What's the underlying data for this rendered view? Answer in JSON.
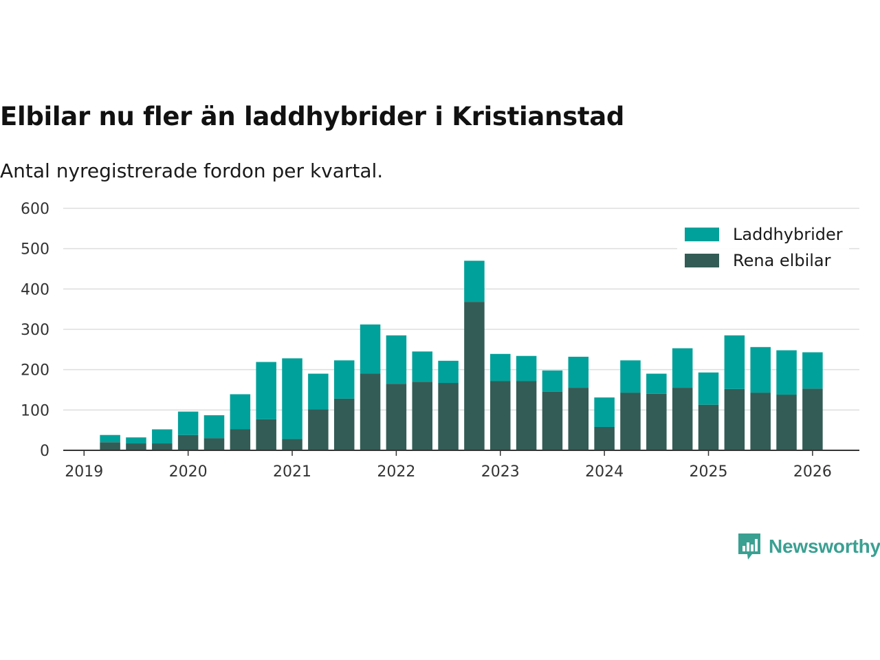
{
  "title": "Elbilar nu fler än laddhybrider i Kristianstad",
  "subtitle": "Antal nyregistrerade fordon per kvartal.",
  "brand": {
    "name": "Newsworthy",
    "icon": "newsworthy-logo-icon"
  },
  "colors": {
    "plug_in_hybrid": "#00a19a",
    "electric": "#335c56",
    "grid": "#dddddd",
    "axis": "#333333",
    "brand": "#3aa092"
  },
  "chart_data": {
    "type": "bar",
    "stacked": true,
    "title": "Elbilar nu fler än laddhybrider i Kristianstad",
    "xlabel": "",
    "ylabel": "",
    "ylim": [
      0,
      600
    ],
    "yticks": [
      0,
      100,
      200,
      300,
      400,
      500,
      600
    ],
    "xticks": [
      {
        "label": "2019",
        "x": 2019.0
      },
      {
        "label": "2020",
        "x": 2020.0
      },
      {
        "label": "2021",
        "x": 2021.0
      },
      {
        "label": "2022",
        "x": 2022.0
      },
      {
        "label": "2023",
        "x": 2023.0
      },
      {
        "label": "2024",
        "x": 2024.0
      },
      {
        "label": "2025",
        "x": 2025.0
      },
      {
        "label": "2026",
        "x": 2026.0
      }
    ],
    "xlim": [
      2018.8,
      2026.45
    ],
    "categories": [
      "2019 Q2",
      "2019 Q3",
      "2019 Q4",
      "2020 Q1",
      "2020 Q2",
      "2020 Q3",
      "2020 Q4",
      "2021 Q1",
      "2021 Q2",
      "2021 Q3",
      "2021 Q4",
      "2022 Q1",
      "2022 Q2",
      "2022 Q3",
      "2022 Q4",
      "2023 Q1",
      "2023 Q2",
      "2023 Q3",
      "2023 Q4",
      "2024 Q1",
      "2024 Q2",
      "2024 Q3",
      "2024 Q4",
      "2025 Q1",
      "2025 Q2",
      "2025 Q3",
      "2025 Q4",
      "2026 Q1"
    ],
    "x": [
      2019.25,
      2019.5,
      2019.75,
      2020.0,
      2020.25,
      2020.5,
      2020.75,
      2021.0,
      2021.25,
      2021.5,
      2021.75,
      2022.0,
      2022.25,
      2022.5,
      2022.75,
      2023.0,
      2023.25,
      2023.5,
      2023.75,
      2024.0,
      2024.25,
      2024.5,
      2024.75,
      2025.0,
      2025.25,
      2025.5,
      2025.75,
      2026.0
    ],
    "series": [
      {
        "name": "Rena elbilar",
        "color": "#335c56",
        "values": [
          20,
          17,
          17,
          38,
          30,
          52,
          77,
          28,
          102,
          128,
          190,
          165,
          170,
          167,
          368,
          172,
          172,
          145,
          155,
          58,
          143,
          140,
          155,
          113,
          152,
          143,
          138,
          153
        ]
      },
      {
        "name": "Laddhybrider",
        "color": "#00a19a",
        "values": [
          18,
          15,
          35,
          58,
          57,
          87,
          142,
          200,
          88,
          95,
          122,
          120,
          75,
          55,
          102,
          67,
          62,
          53,
          77,
          73,
          80,
          50,
          98,
          80,
          133,
          113,
          110,
          90
        ]
      }
    ],
    "legend": {
      "position": "top-right",
      "order": [
        "Laddhybrider",
        "Rena elbilar"
      ]
    }
  }
}
